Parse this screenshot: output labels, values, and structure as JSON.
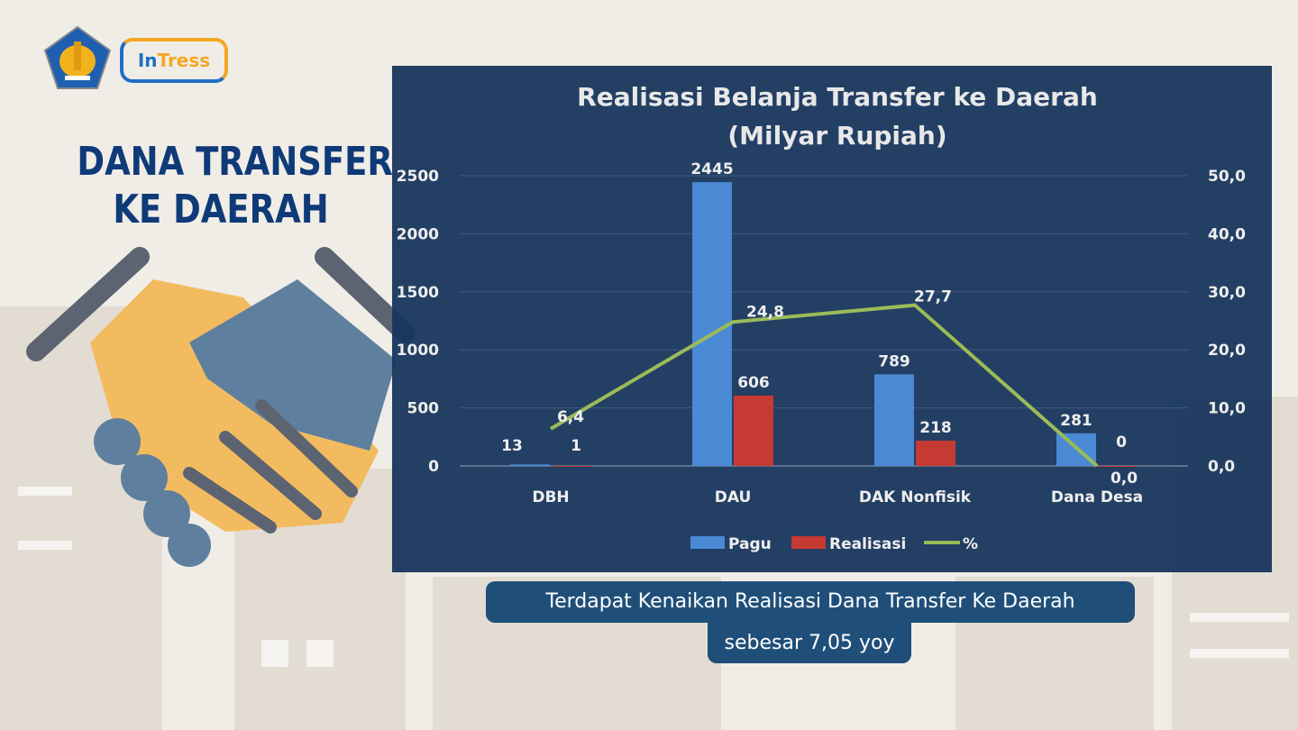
{
  "header": {
    "logo_ministry": "Kementerian Keuangan",
    "logo_app": "InTress"
  },
  "headline": {
    "line1": "DANA TRANSFER",
    "line2": "KE DAERAH"
  },
  "caption": {
    "line1": "Terdapat Kenaikan Realisasi Dana Transfer Ke Daerah",
    "line2": "sebesar 7,05 yoy"
  },
  "colors": {
    "panel": "#17365d",
    "pagu": "#4a8ad4",
    "realisasi": "#c63a34",
    "line": "#9bbb59",
    "headline": "#0f3a78"
  },
  "chart_data": {
    "type": "bar",
    "title": "Realisasi Belanja Transfer ke Daerah",
    "subtitle": "(Milyar Rupiah)",
    "categories": [
      "DBH",
      "DAU",
      "DAK Nonfisik",
      "Dana Desa"
    ],
    "series": [
      {
        "name": "Pagu",
        "type": "bar",
        "axis": "left",
        "values": [
          13,
          2445,
          789,
          281
        ],
        "labels": [
          "13",
          "2445",
          "789",
          "281"
        ]
      },
      {
        "name": "Realisasi",
        "type": "bar",
        "axis": "left",
        "values": [
          1,
          606,
          218,
          0
        ],
        "labels": [
          "1",
          "606",
          "218",
          "0"
        ]
      },
      {
        "name": "%",
        "type": "line",
        "axis": "right",
        "values": [
          6.4,
          24.8,
          27.7,
          0.0
        ],
        "labels": [
          "6,4",
          "24,8",
          "27,7",
          "0,0"
        ]
      }
    ],
    "ylim": [
      0,
      2500
    ],
    "yticks": [
      "0",
      "500",
      "1000",
      "1500",
      "2000",
      "2500"
    ],
    "y2lim": [
      0,
      50
    ],
    "y2ticks": [
      "0,0",
      "10,0",
      "20,0",
      "30,0",
      "40,0",
      "50,0"
    ],
    "grid": true,
    "legend": "bottom"
  }
}
